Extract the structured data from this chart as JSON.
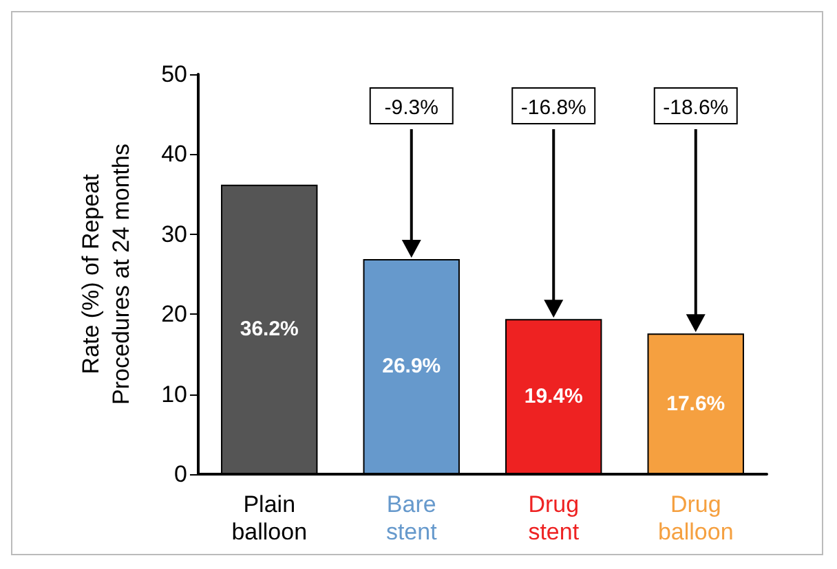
{
  "chart_data": {
    "type": "bar",
    "ylabel": "Rate (%) of Repeat\nProcedures at 24 months",
    "categories": [
      "Plain\nballoon",
      "Bare\nstent",
      "Drug\nstent",
      "Drug\nballoon"
    ],
    "values": [
      36.2,
      26.9,
      19.4,
      17.6
    ],
    "colors": [
      "#555555",
      "#6699cc",
      "#ee2222",
      "#f5a040"
    ],
    "value_labels": [
      "36.2%",
      "26.9%",
      "19.4%",
      "17.6%"
    ],
    "ylim": [
      0,
      50
    ],
    "yticks": [
      0,
      10,
      20,
      30,
      40,
      50
    ],
    "grid": false,
    "annotations": [
      "-9.3%",
      "-16.8%",
      "-18.6%"
    ]
  }
}
